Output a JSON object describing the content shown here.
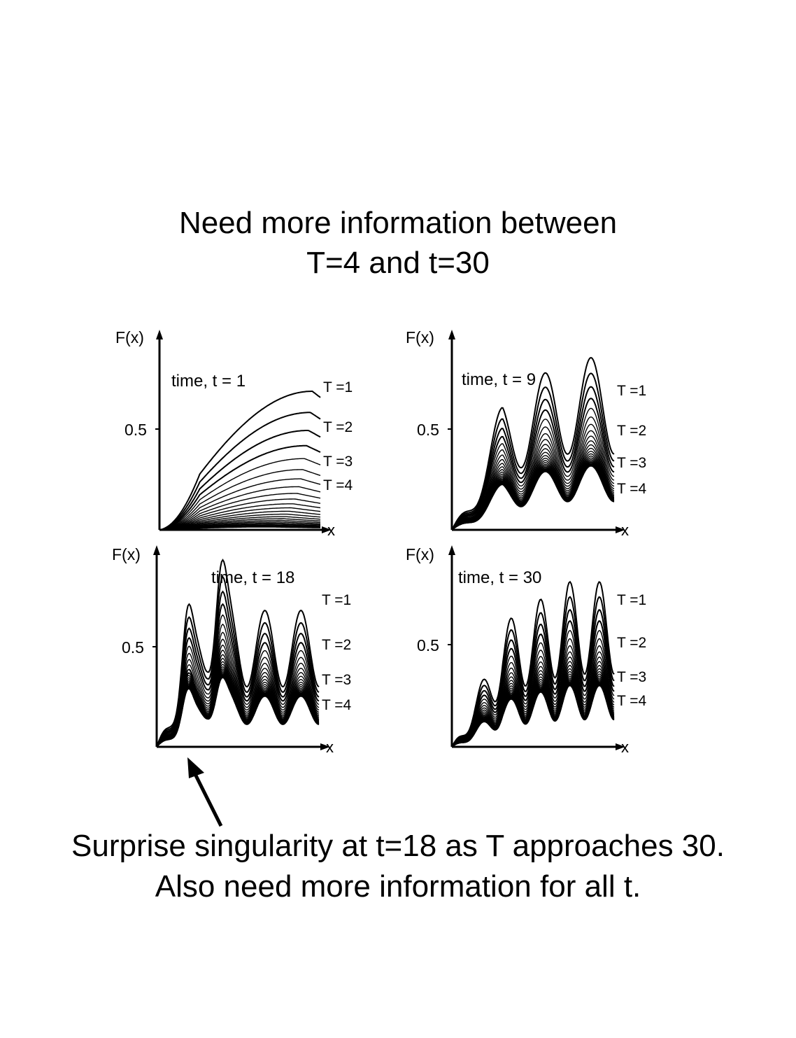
{
  "title": {
    "line1": "Need more information between",
    "line2": "T=4 and t=30"
  },
  "caption": {
    "line1": "Surprise singularity at t=18 as T approaches 30.",
    "line2": "Also need more information for all t."
  },
  "annotation": {
    "arrow_target": "singularity-peak"
  },
  "chart_data": [
    {
      "type": "line",
      "panel": "time, t = 1",
      "ylabel": "F(x)",
      "xlabel": "x",
      "ytick_label": "0.5",
      "series_labels": [
        "T =1",
        "T =2",
        "T =3",
        "T =4"
      ],
      "curve_count": 24,
      "ylim": [
        0,
        0.9
      ],
      "family": {
        "ripples": 0,
        "peak_amplitude": 0.66,
        "shape": "rise-and-bend"
      }
    },
    {
      "type": "line",
      "panel": "time, t = 9",
      "ylabel": "F(x)",
      "xlabel": "x",
      "ytick_label": "0.5",
      "series_labels": [
        "T =1",
        "T =2",
        "T =3",
        "T =4"
      ],
      "curve_count": 24,
      "ylim": [
        0,
        0.9
      ],
      "family": {
        "ripples": 7,
        "peak_amplitude": 0.82,
        "shape": "oscillating"
      }
    },
    {
      "type": "line",
      "panel": "time, t = 18",
      "ylabel": "F(x)",
      "xlabel": "x",
      "ytick_label": "0.5",
      "series_labels": [
        "T =1",
        "T =2",
        "T =3",
        "T =4"
      ],
      "curve_count": 24,
      "ylim": [
        0,
        0.9
      ],
      "family": {
        "ripples": 9,
        "peak_amplitude": 0.86,
        "shape": "sharp-peaks"
      }
    },
    {
      "type": "line",
      "panel": "time, t = 30",
      "ylabel": "F(x)",
      "xlabel": "x",
      "ytick_label": "0.5",
      "series_labels": [
        "T =1",
        "T =2",
        "T =3",
        "T =4"
      ],
      "curve_count": 24,
      "ylim": [
        0,
        0.9
      ],
      "family": {
        "ripples": 11,
        "peak_amplitude": 0.78,
        "shape": "oscillating"
      }
    }
  ]
}
